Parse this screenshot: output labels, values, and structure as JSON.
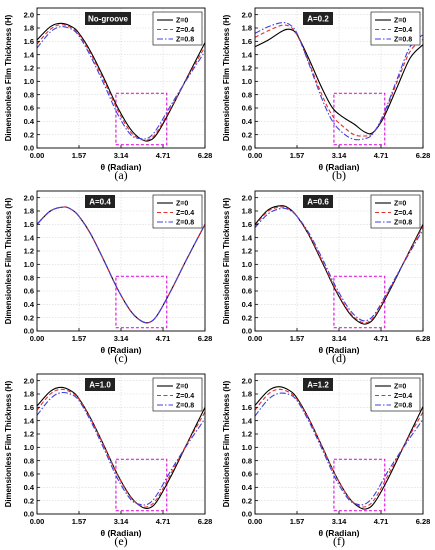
{
  "chart_data": [
    {
      "type": "line",
      "panel_label": "(a)",
      "annotation": "No-groove",
      "xlabel": "θ (Radian)",
      "ylabel": "Dimensionless Film Thickness (H)",
      "xlim": [
        0.0,
        6.28
      ],
      "ylim": [
        0.0,
        2.1
      ],
      "xticks": [
        "0.00",
        "1.57",
        "3.14",
        "4.71",
        "6.28"
      ],
      "yticks": [
        "0.0",
        "0.2",
        "0.4",
        "0.6",
        "0.8",
        "1.0",
        "1.2",
        "1.4",
        "1.6",
        "1.8",
        "2.0"
      ],
      "grid": true,
      "legend_position": "top-right",
      "highlight_box": {
        "x": [
          2.95,
          4.85
        ],
        "y": [
          0.05,
          0.82
        ],
        "color": "#e020e0"
      },
      "series": [
        {
          "name": "Z=0",
          "color": "#000000",
          "dash": "solid",
          "x": [
            0.0,
            0.5,
            0.9,
            1.3,
            1.57,
            2.0,
            2.5,
            3.0,
            3.5,
            3.9,
            4.2,
            4.5,
            5.0,
            5.6,
            6.28
          ],
          "y": [
            1.62,
            1.82,
            1.87,
            1.82,
            1.72,
            1.45,
            1.05,
            0.62,
            0.28,
            0.13,
            0.11,
            0.22,
            0.58,
            1.05,
            1.58
          ]
        },
        {
          "name": "Z=0.4",
          "color": "#e03030",
          "dash": "dash",
          "x": [
            0.0,
            0.5,
            0.9,
            1.3,
            1.57,
            2.0,
            2.5,
            3.0,
            3.5,
            3.9,
            4.2,
            4.5,
            5.0,
            5.6,
            6.28
          ],
          "y": [
            1.56,
            1.78,
            1.85,
            1.8,
            1.7,
            1.42,
            1.01,
            0.58,
            0.24,
            0.13,
            0.13,
            0.25,
            0.6,
            1.04,
            1.52
          ]
        },
        {
          "name": "Z=0.8",
          "color": "#4040e0",
          "dash": "dashdot",
          "x": [
            0.0,
            0.5,
            0.9,
            1.3,
            1.57,
            2.0,
            2.5,
            3.0,
            3.5,
            3.9,
            4.2,
            4.5,
            5.0,
            5.6,
            6.28
          ],
          "y": [
            1.5,
            1.74,
            1.82,
            1.78,
            1.68,
            1.38,
            0.96,
            0.52,
            0.2,
            0.14,
            0.16,
            0.3,
            0.64,
            1.03,
            1.45
          ]
        }
      ]
    },
    {
      "type": "line",
      "panel_label": "(b)",
      "annotation": "A=0.2",
      "xlabel": "θ (Radian)",
      "ylabel": "Dimensionless Film Thickness (H)",
      "xlim": [
        0.0,
        6.28
      ],
      "ylim": [
        0.0,
        2.1
      ],
      "xticks": [
        "0.00",
        "1.57",
        "3.14",
        "4.71",
        "6.28"
      ],
      "yticks": [
        "0.0",
        "0.2",
        "0.4",
        "0.6",
        "0.8",
        "1.0",
        "1.2",
        "1.4",
        "1.6",
        "1.8",
        "2.0"
      ],
      "grid": true,
      "legend_position": "top-right",
      "highlight_box": {
        "x": [
          2.95,
          4.85
        ],
        "y": [
          0.05,
          0.82
        ],
        "color": "#e020e0"
      },
      "series": [
        {
          "name": "Z=0",
          "color": "#000000",
          "dash": "solid",
          "x": [
            0.0,
            0.5,
            1.0,
            1.3,
            1.57,
            2.0,
            2.5,
            2.9,
            3.3,
            3.7,
            4.1,
            4.4,
            4.8,
            5.3,
            5.8,
            6.28
          ],
          "y": [
            1.52,
            1.62,
            1.75,
            1.78,
            1.7,
            1.35,
            0.9,
            0.6,
            0.46,
            0.36,
            0.24,
            0.23,
            0.45,
            0.9,
            1.35,
            1.55
          ]
        },
        {
          "name": "Z=0.4",
          "color": "#e03030",
          "dash": "dash",
          "x": [
            0.0,
            0.5,
            1.0,
            1.3,
            1.57,
            2.0,
            2.5,
            2.9,
            3.3,
            3.7,
            4.1,
            4.4,
            4.8,
            5.3,
            5.8,
            6.28
          ],
          "y": [
            1.66,
            1.76,
            1.84,
            1.82,
            1.7,
            1.3,
            0.8,
            0.48,
            0.32,
            0.2,
            0.18,
            0.22,
            0.48,
            0.98,
            1.45,
            1.63
          ]
        },
        {
          "name": "Z=0.8",
          "color": "#4040e0",
          "dash": "dashdot",
          "x": [
            0.0,
            0.5,
            1.0,
            1.3,
            1.57,
            2.0,
            2.5,
            2.9,
            3.3,
            3.7,
            4.1,
            4.4,
            4.8,
            5.3,
            5.8,
            6.28
          ],
          "y": [
            1.72,
            1.82,
            1.88,
            1.85,
            1.72,
            1.28,
            0.74,
            0.4,
            0.22,
            0.13,
            0.14,
            0.21,
            0.5,
            1.02,
            1.52,
            1.7
          ]
        }
      ]
    },
    {
      "type": "line",
      "panel_label": "(c)",
      "annotation": "A=0.4",
      "xlabel": "θ (Radian)",
      "ylabel": "Dimensionless Film Thickness (H)",
      "xlim": [
        0.0,
        6.28
      ],
      "ylim": [
        0.0,
        2.1
      ],
      "xticks": [
        "0.00",
        "1.57",
        "3.14",
        "4.71",
        "6.28"
      ],
      "yticks": [
        "0.0",
        "0.2",
        "0.4",
        "0.6",
        "0.8",
        "1.0",
        "1.2",
        "1.4",
        "1.6",
        "1.8",
        "2.0"
      ],
      "grid": true,
      "legend_position": "top-right",
      "highlight_box": {
        "x": [
          2.95,
          4.85
        ],
        "y": [
          0.05,
          0.82
        ],
        "color": "#e020e0"
      },
      "series": [
        {
          "name": "Z=0",
          "color": "#000000",
          "dash": "solid",
          "x": [
            0.0,
            0.5,
            1.0,
            1.3,
            1.57,
            2.0,
            2.5,
            3.0,
            3.5,
            3.9,
            4.2,
            4.5,
            5.0,
            5.6,
            6.28
          ],
          "y": [
            1.6,
            1.8,
            1.86,
            1.82,
            1.72,
            1.46,
            1.06,
            0.64,
            0.3,
            0.15,
            0.13,
            0.24,
            0.6,
            1.08,
            1.6
          ]
        },
        {
          "name": "Z=0.4",
          "color": "#e03030",
          "dash": "dash",
          "x": [
            0.0,
            0.5,
            1.0,
            1.3,
            1.57,
            2.0,
            2.5,
            3.0,
            3.5,
            3.9,
            4.2,
            4.5,
            5.0,
            5.6,
            6.28
          ],
          "y": [
            1.6,
            1.8,
            1.86,
            1.82,
            1.72,
            1.46,
            1.06,
            0.64,
            0.3,
            0.15,
            0.13,
            0.24,
            0.6,
            1.08,
            1.6
          ]
        },
        {
          "name": "Z=0.8",
          "color": "#4040e0",
          "dash": "dashdot",
          "x": [
            0.0,
            0.5,
            1.0,
            1.3,
            1.57,
            2.0,
            2.5,
            3.0,
            3.5,
            3.9,
            4.2,
            4.5,
            5.0,
            5.6,
            6.28
          ],
          "y": [
            1.6,
            1.8,
            1.86,
            1.82,
            1.72,
            1.46,
            1.06,
            0.64,
            0.3,
            0.15,
            0.13,
            0.24,
            0.6,
            1.08,
            1.6
          ]
        }
      ]
    },
    {
      "type": "line",
      "panel_label": "(d)",
      "annotation": "A=0.6",
      "xlabel": "θ (Radian)",
      "ylabel": "Dimensionless Film Thickness (H)",
      "xlim": [
        0.0,
        6.28
      ],
      "ylim": [
        0.0,
        2.1
      ],
      "xticks": [
        "0.00",
        "1.57",
        "3.14",
        "4.71",
        "6.28"
      ],
      "yticks": [
        "0.0",
        "0.2",
        "0.4",
        "0.6",
        "0.8",
        "1.0",
        "1.2",
        "1.4",
        "1.6",
        "1.8",
        "2.0"
      ],
      "grid": true,
      "legend_position": "top-right",
      "highlight_box": {
        "x": [
          2.95,
          4.85
        ],
        "y": [
          0.05,
          0.82
        ],
        "color": "#e020e0"
      },
      "series": [
        {
          "name": "Z=0",
          "color": "#000000",
          "dash": "solid",
          "x": [
            0.0,
            0.5,
            1.0,
            1.3,
            1.57,
            2.0,
            2.5,
            3.0,
            3.5,
            3.9,
            4.2,
            4.5,
            5.0,
            5.6,
            6.28
          ],
          "y": [
            1.6,
            1.82,
            1.88,
            1.83,
            1.72,
            1.45,
            1.04,
            0.62,
            0.28,
            0.13,
            0.11,
            0.22,
            0.58,
            1.06,
            1.6
          ]
        },
        {
          "name": "Z=0.4",
          "color": "#e03030",
          "dash": "dash",
          "x": [
            0.0,
            0.5,
            1.0,
            1.3,
            1.57,
            2.0,
            2.5,
            3.0,
            3.5,
            3.9,
            4.2,
            4.5,
            5.0,
            5.6,
            6.28
          ],
          "y": [
            1.58,
            1.8,
            1.86,
            1.82,
            1.72,
            1.46,
            1.06,
            0.64,
            0.3,
            0.15,
            0.13,
            0.24,
            0.6,
            1.06,
            1.57
          ]
        },
        {
          "name": "Z=0.8",
          "color": "#4040e0",
          "dash": "dashdot",
          "x": [
            0.0,
            0.5,
            1.0,
            1.3,
            1.57,
            2.0,
            2.5,
            3.0,
            3.5,
            3.9,
            4.2,
            4.5,
            5.0,
            5.6,
            6.28
          ],
          "y": [
            1.55,
            1.76,
            1.84,
            1.81,
            1.72,
            1.48,
            1.1,
            0.68,
            0.34,
            0.18,
            0.16,
            0.27,
            0.62,
            1.05,
            1.52
          ]
        }
      ]
    },
    {
      "type": "line",
      "panel_label": "(e)",
      "annotation": "A=1.0",
      "xlabel": "θ (Radian)",
      "ylabel": "Dimensionless Film Thickness (H)",
      "xlim": [
        0.0,
        6.28
      ],
      "ylim": [
        0.0,
        2.1
      ],
      "xticks": [
        "0.00",
        "1.57",
        "3.14",
        "4.71",
        "6.28"
      ],
      "yticks": [
        "0.0",
        "0.2",
        "0.4",
        "0.6",
        "0.8",
        "1.0",
        "1.2",
        "1.4",
        "1.6",
        "1.8",
        "2.0"
      ],
      "grid": true,
      "legend_position": "top-right",
      "highlight_box": {
        "x": [
          2.95,
          4.85
        ],
        "y": [
          0.05,
          0.82
        ],
        "color": "#e020e0"
      },
      "series": [
        {
          "name": "Z=0",
          "color": "#000000",
          "dash": "solid",
          "x": [
            0.0,
            0.5,
            0.9,
            1.3,
            1.57,
            2.0,
            2.5,
            3.0,
            3.5,
            3.9,
            4.2,
            4.5,
            5.0,
            5.6,
            6.28
          ],
          "y": [
            1.62,
            1.84,
            1.9,
            1.84,
            1.73,
            1.44,
            1.03,
            0.6,
            0.26,
            0.11,
            0.09,
            0.2,
            0.56,
            1.05,
            1.6
          ]
        },
        {
          "name": "Z=0.4",
          "color": "#e03030",
          "dash": "dash",
          "x": [
            0.0,
            0.5,
            0.9,
            1.3,
            1.57,
            2.0,
            2.5,
            3.0,
            3.5,
            3.9,
            4.2,
            4.5,
            5.0,
            5.6,
            6.28
          ],
          "y": [
            1.56,
            1.8,
            1.87,
            1.82,
            1.72,
            1.43,
            1.02,
            0.59,
            0.25,
            0.12,
            0.12,
            0.24,
            0.6,
            1.05,
            1.53
          ]
        },
        {
          "name": "Z=0.8",
          "color": "#4040e0",
          "dash": "dashdot",
          "x": [
            0.0,
            0.5,
            0.9,
            1.3,
            1.57,
            2.0,
            2.5,
            3.0,
            3.5,
            3.9,
            4.2,
            4.5,
            5.0,
            5.6,
            6.28
          ],
          "y": [
            1.48,
            1.73,
            1.82,
            1.79,
            1.7,
            1.4,
            0.98,
            0.54,
            0.22,
            0.14,
            0.16,
            0.3,
            0.65,
            1.03,
            1.43
          ]
        }
      ]
    },
    {
      "type": "line",
      "panel_label": "(f)",
      "annotation": "A=1.2",
      "xlabel": "θ (Radian)",
      "ylabel": "Dimensionless Film Thickness (H)",
      "xlim": [
        0.0,
        6.28
      ],
      "ylim": [
        0.0,
        2.1
      ],
      "xticks": [
        "0.00",
        "1.57",
        "3.14",
        "4.71",
        "6.28"
      ],
      "yticks": [
        "0.0",
        "0.2",
        "0.4",
        "0.6",
        "0.8",
        "1.0",
        "1.2",
        "1.4",
        "1.6",
        "1.8",
        "2.0"
      ],
      "grid": true,
      "legend_position": "top-right",
      "highlight_box": {
        "x": [
          2.95,
          4.85
        ],
        "y": [
          0.05,
          0.82
        ],
        "color": "#e020e0"
      },
      "series": [
        {
          "name": "Z=0",
          "color": "#000000",
          "dash": "solid",
          "x": [
            0.0,
            0.5,
            0.9,
            1.3,
            1.57,
            2.0,
            2.5,
            3.0,
            3.5,
            3.9,
            4.2,
            4.5,
            5.0,
            5.6,
            6.28
          ],
          "y": [
            1.63,
            1.85,
            1.91,
            1.85,
            1.74,
            1.44,
            1.02,
            0.59,
            0.25,
            0.1,
            0.08,
            0.19,
            0.55,
            1.05,
            1.61
          ]
        },
        {
          "name": "Z=0.4",
          "color": "#e03030",
          "dash": "dash",
          "x": [
            0.0,
            0.5,
            0.9,
            1.3,
            1.57,
            2.0,
            2.5,
            3.0,
            3.5,
            3.9,
            4.2,
            4.5,
            5.0,
            5.6,
            6.28
          ],
          "y": [
            1.56,
            1.8,
            1.87,
            1.82,
            1.72,
            1.43,
            1.02,
            0.59,
            0.25,
            0.12,
            0.12,
            0.24,
            0.6,
            1.05,
            1.53
          ]
        },
        {
          "name": "Z=0.8",
          "color": "#4040e0",
          "dash": "dashdot",
          "x": [
            0.0,
            0.5,
            0.9,
            1.3,
            1.57,
            2.0,
            2.5,
            3.0,
            3.5,
            3.9,
            4.2,
            4.5,
            5.0,
            5.6,
            6.28
          ],
          "y": [
            1.47,
            1.72,
            1.81,
            1.79,
            1.7,
            1.4,
            0.98,
            0.54,
            0.22,
            0.14,
            0.17,
            0.31,
            0.66,
            1.03,
            1.42
          ]
        }
      ]
    }
  ]
}
